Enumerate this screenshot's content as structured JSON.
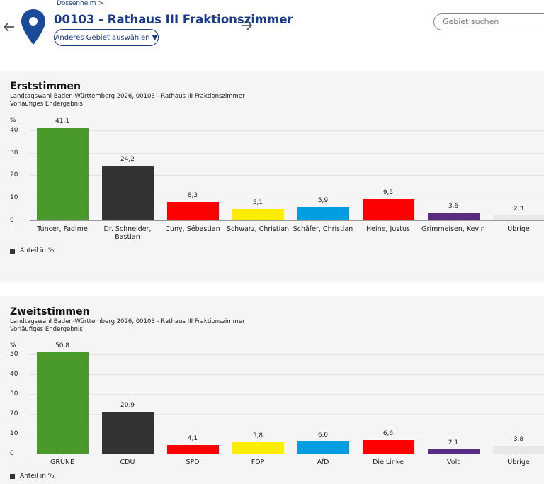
{
  "header": {
    "breadcrumb": "Dossenheim >",
    "title": "00103 - Rathaus III Fraktionszimmer",
    "button": "Anderes Gebiet auswählen ▼",
    "search_placeholder": "Gebiet suchen"
  },
  "chart_data": [
    {
      "type": "bar",
      "title": "Erststimmen",
      "subtitle": "Landtagswahl Baden-Württemberg 2026, 00103 - Rathaus III Fraktionszimmer",
      "status": "Vorläufiges Endergebnis",
      "ylabel": "%",
      "categories": [
        "Tuncer, Fadime",
        "Dr. Schneider, Bastian",
        "Cuny, Sébastian",
        "Schwarz, Christian",
        "Schäfer, Christian",
        "Heine, Justus",
        "Grimmeisen, Kevin",
        "Übrige"
      ],
      "series": [
        {
          "name": "Anteil in %",
          "color": "#333333",
          "colors": [
            "#4a9a2b",
            "#333333",
            "#ff0000",
            "#ffed00",
            "#009ee0",
            "#ff0000",
            "#582c83",
            "#e8e8e8"
          ],
          "values": [
            41.1,
            24.2,
            8.3,
            5.1,
            5.9,
            9.5,
            3.6,
            2.3
          ],
          "value_labels": [
            "41,1",
            "24,2",
            "8,3",
            "5,1",
            "5,9",
            "9,5",
            "3,6",
            "2,3"
          ]
        }
      ],
      "ylim": [
        0,
        42.5
      ],
      "yticks": [
        0,
        10,
        20,
        30,
        40
      ],
      "grid": true,
      "legend": "bottom-left"
    },
    {
      "type": "bar",
      "title": "Zweitstimmen",
      "subtitle": "Landtagswahl Baden-Württemberg 2026, 00103 - Rathaus III Fraktionszimmer",
      "status": "Vorläufiges Endergebnis",
      "ylabel": "%",
      "categories": [
        "GRÜNE",
        "CDU",
        "SPD",
        "FDP",
        "AfD",
        "Die Linke",
        "Volt",
        "Übrige"
      ],
      "series": [
        {
          "name": "Anteil in %",
          "color": "#333333",
          "colors": [
            "#4a9a2b",
            "#333333",
            "#ff0000",
            "#ffed00",
            "#009ee0",
            "#ff0000",
            "#582c83",
            "#e8e8e8"
          ],
          "values": [
            50.8,
            20.9,
            4.1,
            5.8,
            6.0,
            6.6,
            2.1,
            3.8
          ],
          "value_labels": [
            "50,8",
            "20,9",
            "4,1",
            "5,8",
            "6,0",
            "6,6",
            "2,1",
            "3,8"
          ]
        }
      ],
      "ylim": [
        0,
        52
      ],
      "yticks": [
        0,
        10,
        20,
        30,
        40,
        50
      ],
      "grid": true,
      "legend": "bottom-left"
    }
  ]
}
